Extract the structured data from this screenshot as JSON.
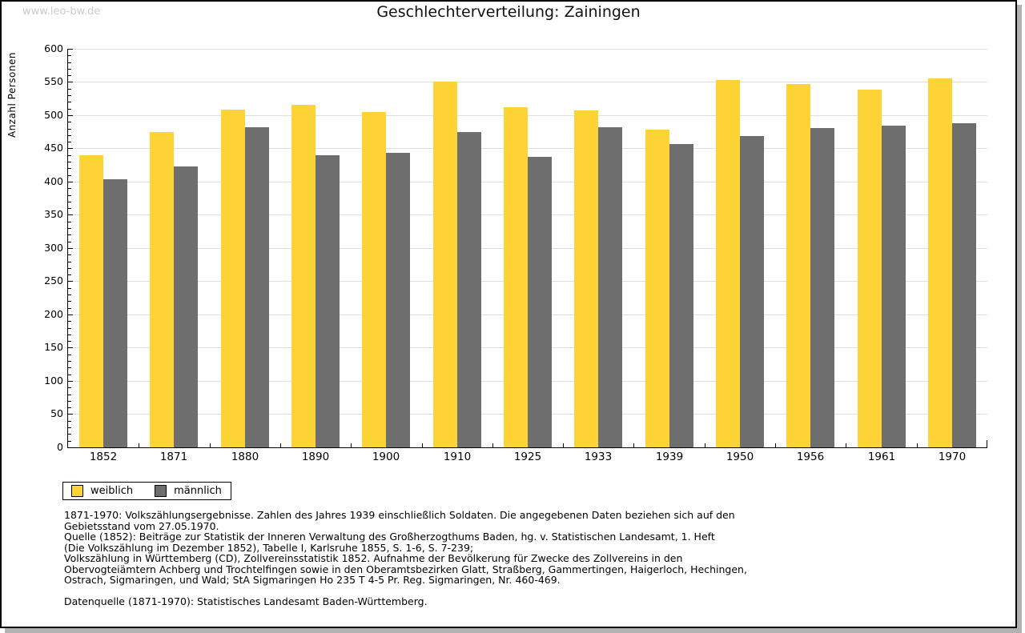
{
  "page": {
    "watermark": "www.leo-bw.de",
    "title": "Geschlechterverteilung: Zainingen"
  },
  "chart_data": {
    "type": "bar",
    "title": "Geschlechterverteilung: Zainingen",
    "xlabel": "",
    "ylabel": "Anzahl Personen",
    "ylim": [
      0,
      600
    ],
    "y_major_step": 50,
    "y_minor_step": 10,
    "grid": true,
    "legend_position": "bottom-left",
    "categories": [
      "1852",
      "1871",
      "1880",
      "1890",
      "1900",
      "1910",
      "1925",
      "1933",
      "1939",
      "1950",
      "1956",
      "1961",
      "1970"
    ],
    "series": [
      {
        "name": "weiblich",
        "color": "#FDD335",
        "values": [
          440,
          475,
          509,
          516,
          505,
          550,
          512,
          507,
          478,
          553,
          547,
          538,
          555
        ]
      },
      {
        "name": "männlich",
        "color": "#6E6E6E",
        "values": [
          404,
          423,
          482,
          440,
          443,
          475,
          437,
          482,
          457,
          469,
          481,
          484,
          488
        ]
      }
    ]
  },
  "legend": {
    "items": [
      {
        "label": "weiblich",
        "color": "#FDD335"
      },
      {
        "label": "männlich",
        "color": "#6E6E6E"
      }
    ]
  },
  "footnotes": {
    "lines": [
      "1871-1970: Volkszählungsergebnisse. Zahlen des Jahres 1939 einschließlich Soldaten. Die angegebenen Daten beziehen sich auf den",
      "Gebietsstand vom 27.05.1970.",
      "Quelle (1852): Beiträge zur Statistik der Inneren Verwaltung des Großherzogthums Baden, hg. v. Statistischen Landesamt, 1. Heft",
      "(Die Volkszählung im Dezember 1852), Tabelle I, Karlsruhe 1855, S. 1-6, S. 7-239;",
      "Volkszählung in Württemberg (CD), Zollvereinsstatistik 1852. Aufnahme der Bevölkerung für Zwecke des Zollvereins in den",
      "Obervogteiämtern Achberg und Trochtelfingen sowie in den Oberamtsbezirken Glatt, Straßberg, Gammertingen, Haigerloch, Hechingen,",
      "Ostrach, Sigmaringen, und Wald; StA Sigmaringen Ho 235 T 4-5 Pr. Reg. Sigmaringen, Nr. 460-469."
    ],
    "datenquelle": "Datenquelle (1871-1970): Statistisches Landesamt Baden-Württemberg."
  },
  "colors": {
    "gridline": "#DFDFDF",
    "axis": "#000000",
    "watermark": "#CBCBCB",
    "frame_shadow": "#B2B2B2"
  }
}
